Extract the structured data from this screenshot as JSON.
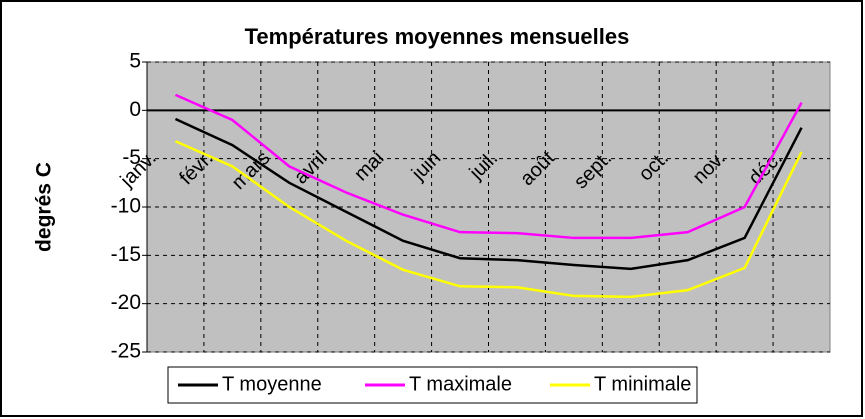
{
  "chart_data": {
    "type": "line",
    "title": "Températures moyennes mensuelles",
    "y_label": "degrés C",
    "categories": [
      "janv.",
      "févr.",
      "mars",
      "avril",
      "mai",
      "juin",
      "juil.",
      "août",
      "sept.",
      "oct.",
      "nov.",
      "déc."
    ],
    "series": [
      {
        "name": "T moyenne",
        "color": "#000000",
        "values": [
          -0.9,
          -3.6,
          -7.5,
          -10.5,
          -13.5,
          -15.3,
          -15.5,
          -16.0,
          -16.4,
          -15.5,
          -13.2,
          -1.8
        ]
      },
      {
        "name": "T maximale",
        "color": "#ff00ff",
        "values": [
          1.6,
          -1.0,
          -5.8,
          -8.5,
          -10.8,
          -12.6,
          -12.7,
          -13.2,
          -13.2,
          -12.6,
          -10.0,
          0.8
        ]
      },
      {
        "name": "T minimale",
        "color": "#ffff00",
        "values": [
          -3.2,
          -5.8,
          -10.0,
          -13.5,
          -16.5,
          -18.2,
          -18.3,
          -19.2,
          -19.3,
          -18.6,
          -16.3,
          -4.3
        ]
      }
    ],
    "ylim": [
      -25,
      5
    ],
    "yticks": [
      5,
      0,
      -5,
      -10,
      -15,
      -20,
      -25
    ],
    "grid": true,
    "legend": "bottom"
  }
}
